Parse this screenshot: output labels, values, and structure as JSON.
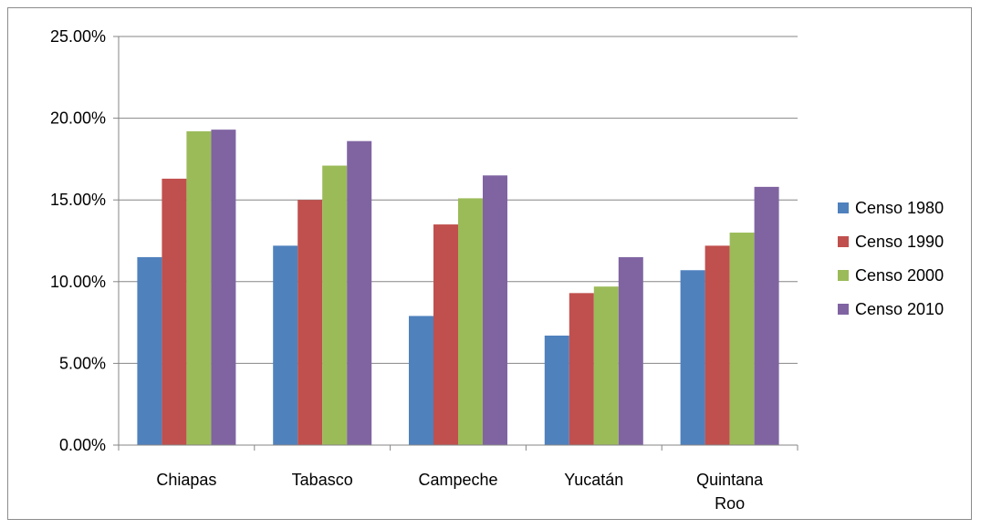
{
  "chart_data": {
    "type": "bar",
    "title": "",
    "xlabel": "",
    "ylabel": "",
    "categories": [
      [
        "Chiapas"
      ],
      [
        "Tabasco"
      ],
      [
        "Campeche"
      ],
      [
        "Yucatán"
      ],
      [
        "Quintana",
        "Roo"
      ]
    ],
    "series": [
      {
        "name": "Censo 1980",
        "color": "#4F81BD",
        "values": [
          11.5,
          12.2,
          7.9,
          6.7,
          10.7
        ]
      },
      {
        "name": "Censo 1990",
        "color": "#C0504D",
        "values": [
          16.3,
          15.0,
          13.5,
          9.3,
          12.2
        ]
      },
      {
        "name": "Censo 2000",
        "color": "#9BBB59",
        "values": [
          19.2,
          17.1,
          15.1,
          9.7,
          13.0
        ]
      },
      {
        "name": "Censo 2010",
        "color": "#8064A2",
        "values": [
          19.3,
          18.6,
          16.5,
          11.5,
          15.8
        ]
      }
    ],
    "ylim": [
      0,
      25
    ],
    "yticks": [
      0,
      5,
      10,
      15,
      20,
      25
    ],
    "ytick_labels": [
      "0.00%",
      "5.00%",
      "10.00%",
      "15.00%",
      "20.00%",
      "25.00%"
    ],
    "grid": true,
    "legend_position": "right"
  }
}
